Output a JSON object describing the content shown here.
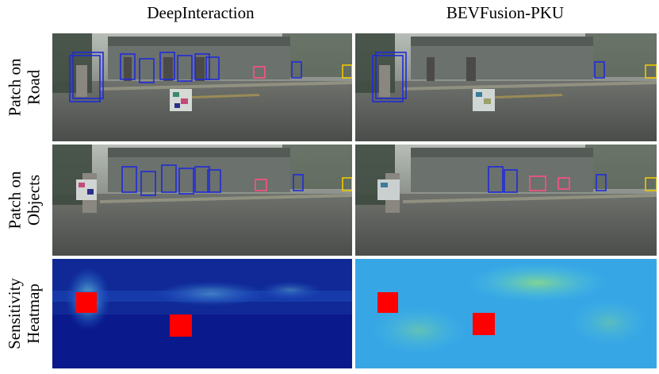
{
  "columns": [
    {
      "title": "DeepInteraction"
    },
    {
      "title": "BEVFusion-PKU"
    }
  ],
  "rows": [
    {
      "label_line1": "Patch on",
      "label_line2": "Road"
    },
    {
      "label_line1": "Patch on",
      "label_line2": "Objects"
    },
    {
      "label_line1": "Sensitivity",
      "label_line2": "Heatmap"
    }
  ],
  "colors": {
    "box_blue": "#1f2bd9",
    "box_pink": "#ff4f86",
    "box_yellow": "#f0c800",
    "heat_red": "#ff0000",
    "heat_dark": "#0a1a8c",
    "heat_mid": "#1e6fe0",
    "heat_cyan": "#4fd0ee"
  }
}
